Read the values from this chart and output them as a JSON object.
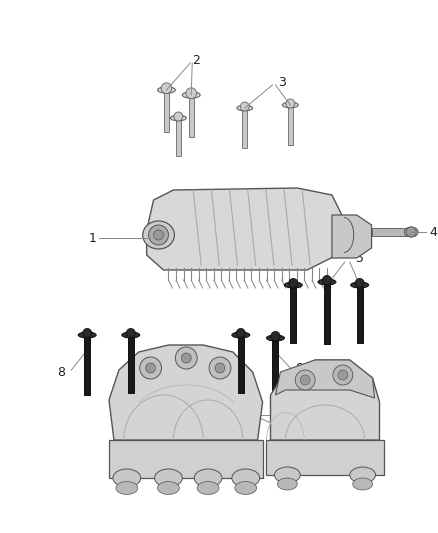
{
  "background_color": "#ffffff",
  "line_color": "#666666",
  "dark_color": "#1a1a1a",
  "label_color": "#222222",
  "figsize": [
    4.38,
    5.33
  ],
  "dpi": 100,
  "bolt_light_face": "#d4d4d4",
  "bolt_light_edge": "#666666",
  "bolt_dark_face": "#222222",
  "bolt_dark_edge": "#111111",
  "part_face": "#e0e0e0",
  "part_edge": "#555555"
}
